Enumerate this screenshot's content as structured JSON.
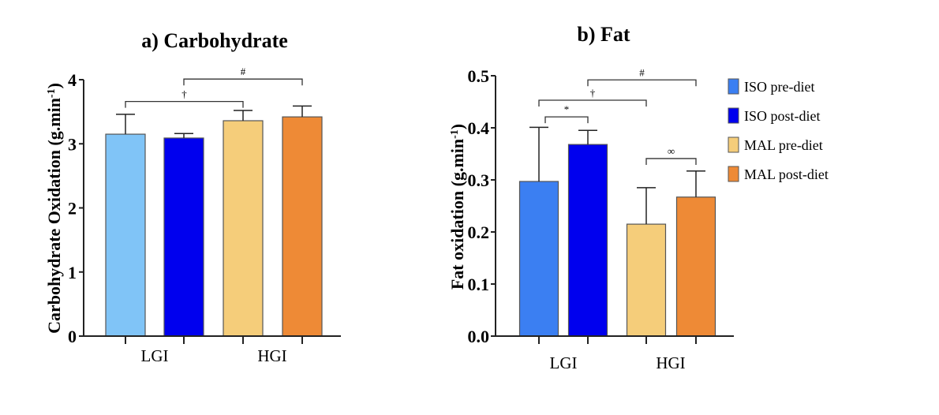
{
  "chart_data": [
    {
      "type": "bar",
      "title": "a) Carbohydrate",
      "ylabel": "Carbohydrate Oxidation (g.min",
      "ylabel_sup": "-1",
      "ylabel_close": ")",
      "ylim": [
        0,
        4
      ],
      "yticks": [
        "0",
        "1",
        "2",
        "3",
        "4"
      ],
      "categories": [
        "LGI",
        "HGI"
      ],
      "bars": [
        {
          "series": "ISO pre-diet",
          "category": "LGI",
          "value": 3.15,
          "error": 0.31,
          "color": "#80C4F7"
        },
        {
          "series": "ISO post-diet",
          "category": "LGI",
          "value": 3.09,
          "error": 0.07,
          "color": "#0000EE"
        },
        {
          "series": "MAL pre-diet",
          "category": "HGI",
          "value": 3.36,
          "error": 0.16,
          "color": "#F5CD7A"
        },
        {
          "series": "MAL post-diet",
          "category": "HGI",
          "value": 3.42,
          "error": 0.17,
          "color": "#EE8A36"
        }
      ],
      "brackets": [
        {
          "symbol": "#",
          "from": 1,
          "to": 3,
          "level": 4.01
        },
        {
          "symbol": "†",
          "from": 0,
          "to": 2,
          "level": 3.66
        }
      ],
      "grid": false
    },
    {
      "type": "bar",
      "title": "b) Fat",
      "ylabel": "Fat oxidation (g.min",
      "ylabel_sup": "-1",
      "ylabel_close": ")",
      "ylim": [
        0,
        0.5
      ],
      "yticks": [
        "0.0",
        "0.1",
        "0.2",
        "0.3",
        "0.4",
        "0.5"
      ],
      "categories": [
        "LGI",
        "HGI"
      ],
      "bars": [
        {
          "series": "ISO pre-diet",
          "category": "LGI",
          "value": 0.297,
          "error": 0.104,
          "color": "#3B7FF2"
        },
        {
          "series": "ISO post-diet",
          "category": "LGI",
          "value": 0.368,
          "error": 0.027,
          "color": "#0000EE"
        },
        {
          "series": "MAL pre-diet",
          "category": "HGI",
          "value": 0.215,
          "error": 0.07,
          "color": "#F5CD7A"
        },
        {
          "series": "MAL post-diet",
          "category": "HGI",
          "value": 0.267,
          "error": 0.05,
          "color": "#EE8A36"
        }
      ],
      "brackets": [
        {
          "symbol": "#",
          "from": 1,
          "to": 3,
          "level": 0.492
        },
        {
          "symbol": "†",
          "from": 0,
          "to": 2,
          "level": 0.453
        },
        {
          "symbol": "*",
          "from": 0,
          "to": 1,
          "level": 0.421
        },
        {
          "symbol": "∞",
          "from": 2,
          "to": 3,
          "level": 0.341
        }
      ],
      "legend": {
        "position": "right",
        "entries": [
          {
            "label": "ISO pre-diet",
            "color": "#3B7FF2"
          },
          {
            "label": "ISO post-diet",
            "color": "#0000EE"
          },
          {
            "label": "MAL pre-diet",
            "color": "#F5CD7A"
          },
          {
            "label": "MAL post-diet",
            "color": "#EE8A36"
          }
        ]
      },
      "grid": false
    }
  ]
}
